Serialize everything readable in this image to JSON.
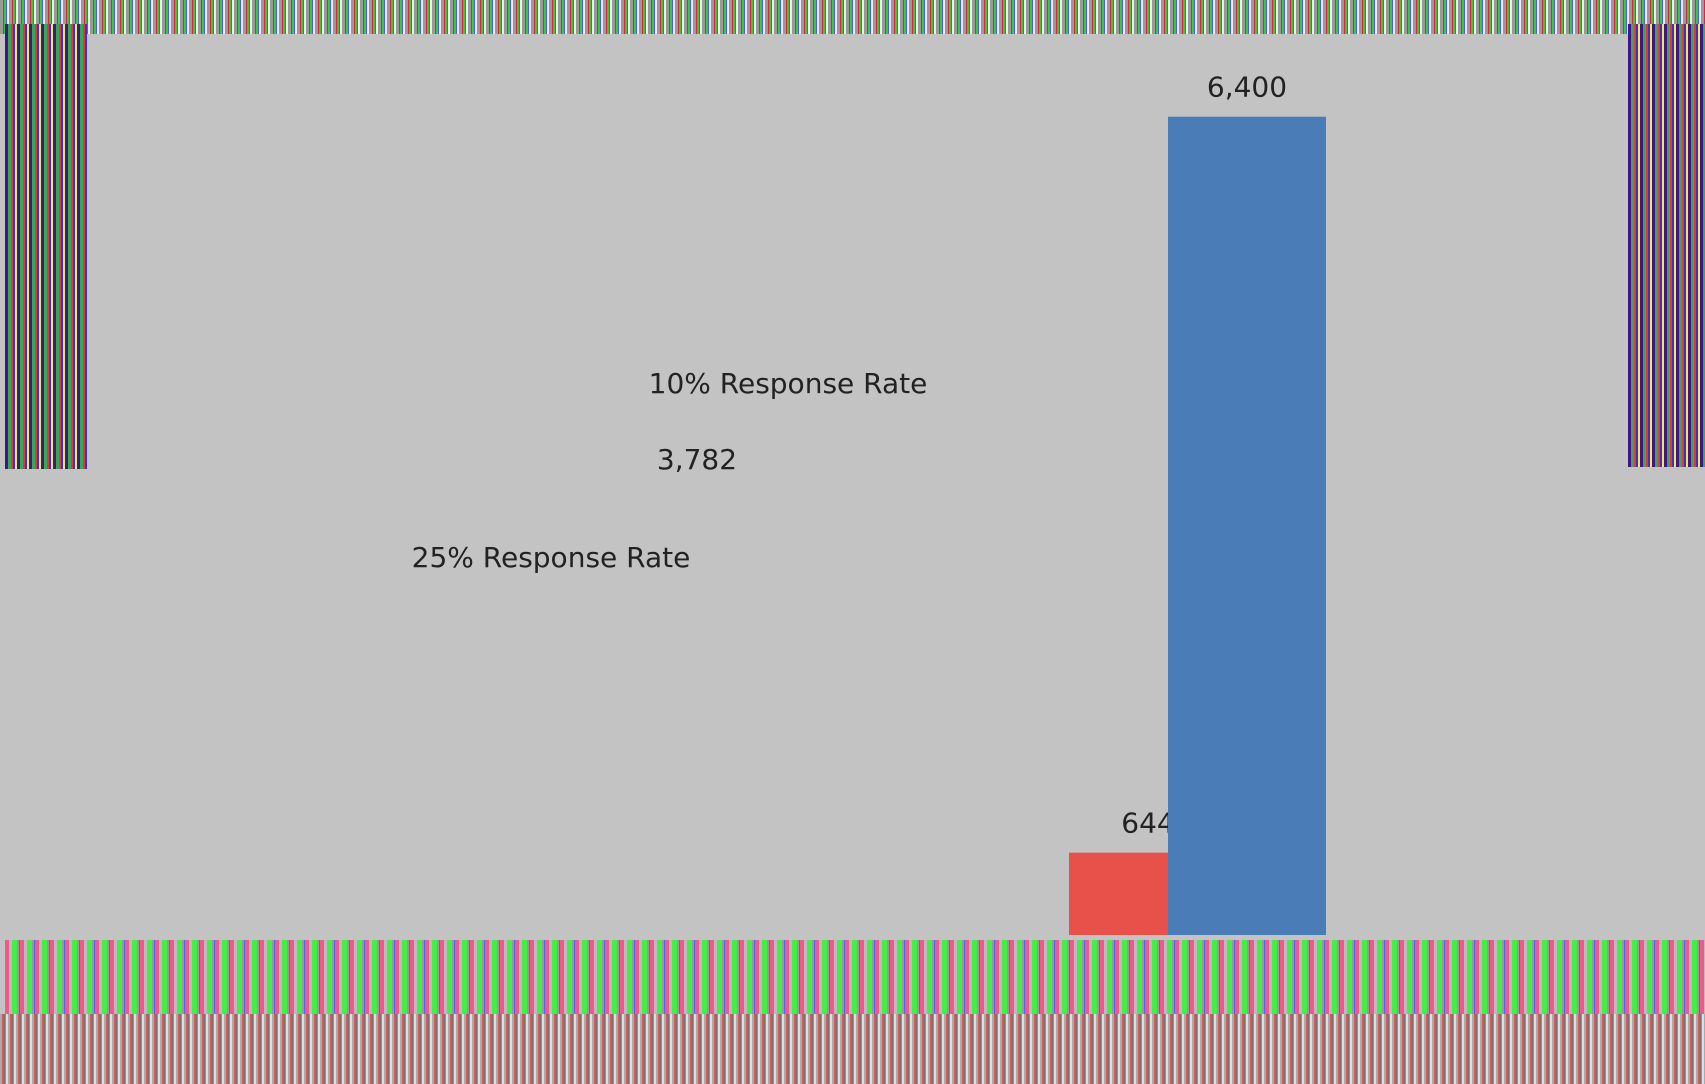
{
  "chart_data": {
    "type": "bar",
    "categories": [
      null,
      null
    ],
    "values": [
      644,
      6400
    ],
    "value_labels": [
      "644",
      "6,400"
    ],
    "colors": [
      "#e8504a",
      "#4a7db8"
    ],
    "ylim": [
      0,
      7000
    ],
    "annotations": [
      "10% Response Rate",
      "3,782",
      "25% Response Rate"
    ]
  }
}
